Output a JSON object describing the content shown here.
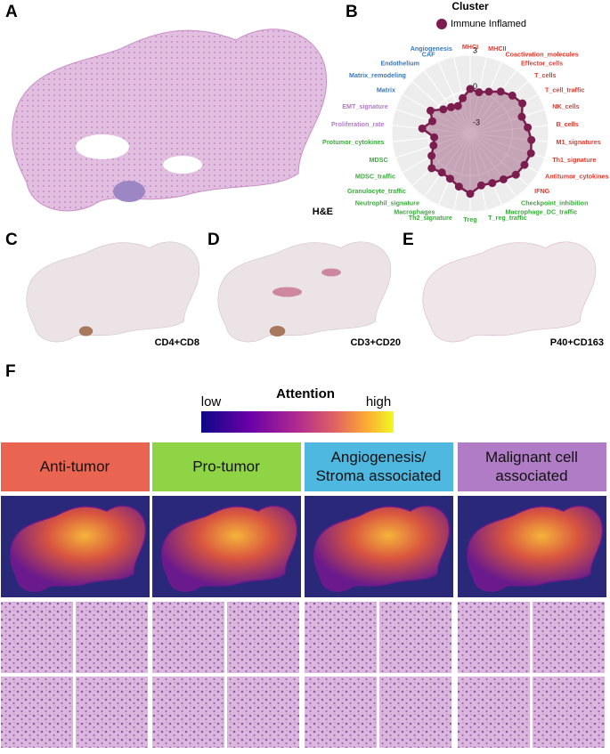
{
  "panels": {
    "a": {
      "label": "A",
      "stain": "H&E"
    },
    "b": {
      "label": "B"
    },
    "c": {
      "label": "C",
      "stain": "CD4+CD8"
    },
    "d": {
      "label": "D",
      "stain": "CD3+CD20"
    },
    "e": {
      "label": "E",
      "stain": "P40+CD163"
    },
    "f": {
      "label": "F"
    }
  },
  "chart_data": {
    "type": "radar",
    "title": "Cluster",
    "categories": [
      "MHCI",
      "MHCII",
      "Coactivation_molecules",
      "Effector_cells",
      "T_cells",
      "T_cell_traffic",
      "NK_cells",
      "B_cells",
      "M1_signatures",
      "Th1_signature",
      "Antitumor_cytokines",
      "IFNG",
      "Checkpoint_inhibition",
      "Macrophage_DC_traffic",
      "T_reg_traffic",
      "Treg",
      "Th2_signature",
      "Macrophages",
      "Neutrophil_signature",
      "Granulocyte_traffic",
      "MDSC_traffic",
      "MDSC",
      "Protumor_cytokines",
      "Proliferation_rate",
      "EMT_signature",
      "Matrix",
      "Matrix_remodeling",
      "Endothelium",
      "CAF",
      "Angiogenesis"
    ],
    "category_colors": [
      "#e8392d",
      "#e8392d",
      "#e8392d",
      "#e8392d",
      "#e8392d",
      "#e8392d",
      "#e8392d",
      "#e8392d",
      "#e8392d",
      "#e8392d",
      "#e8392d",
      "#e8392d",
      "#3bab3b",
      "#3bab3b",
      "#3bab3b",
      "#3bab3b",
      "#3bab3b",
      "#3bab3b",
      "#3bab3b",
      "#3bab3b",
      "#3bab3b",
      "#3bab3b",
      "#3bab3b",
      "#b07cc6",
      "#b07cc6",
      "#3a78b8",
      "#3a78b8",
      "#3a78b8",
      "#3a78b8",
      "#3a78b8"
    ],
    "series": [
      {
        "name": "Immune Inflamed",
        "color": "#7b1e4f",
        "values": [
          0.2,
          0,
          0.3,
          0.8,
          1.2,
          1.5,
          1.0,
          1.3,
          1.6,
          1.8,
          1.7,
          1.6,
          1.2,
          1.0,
          0.9,
          1.5,
          1.0,
          0.6,
          0.5,
          0.8,
          0.2,
          -0.3,
          -0.5,
          0.5,
          -0.2,
          0.3,
          -0.5,
          -0.8,
          -1.0,
          -0.5
        ]
      }
    ],
    "rlim": [
      -3.5,
      3
    ],
    "rticks": [
      -3,
      0,
      3
    ],
    "grid": true
  },
  "attention": {
    "title": "Attention",
    "low": "low",
    "high": "high"
  },
  "groups": [
    {
      "label": [
        "Anti-tumor"
      ],
      "color": "#ea6452"
    },
    {
      "label": [
        "Pro-tumor"
      ],
      "color": "#8fd444"
    },
    {
      "label": [
        "Angiogenesis/",
        "Stroma associated"
      ],
      "color": "#4eb8e0"
    },
    {
      "label": [
        "Malignant cell",
        "associated"
      ],
      "color": "#b07cc6"
    }
  ]
}
